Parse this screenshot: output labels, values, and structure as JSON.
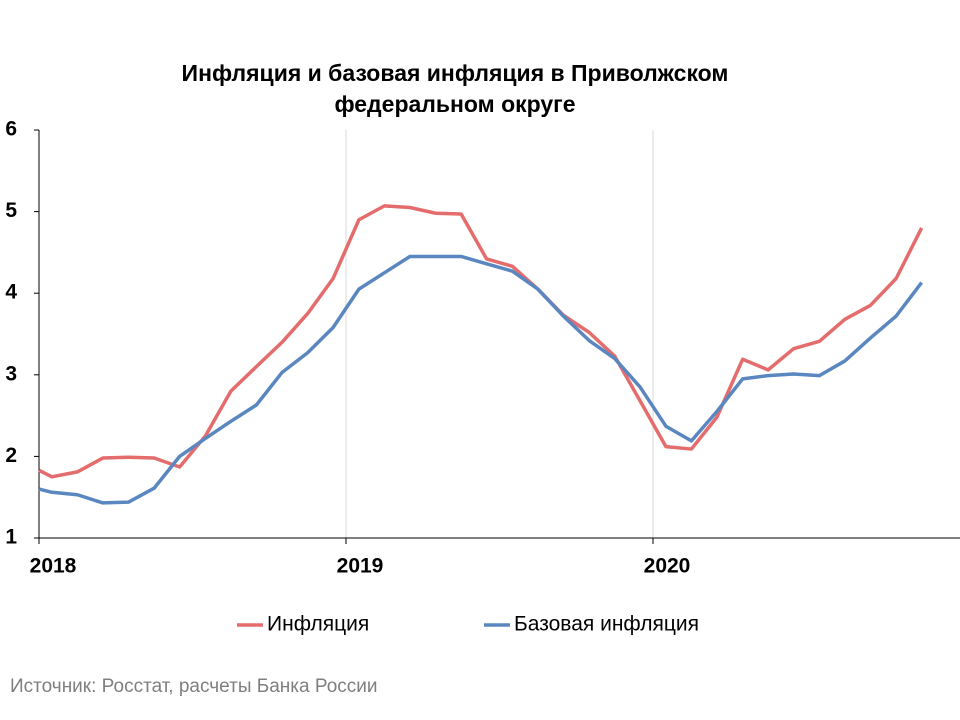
{
  "chart_data": {
    "type": "line",
    "title": "Инфляция и базовая инфляция в Приволжском федеральном округе",
    "source": "Источник: Росстат, расчеты Банка России",
    "x": [
      2018,
      2018.042,
      2018.125,
      2018.208,
      2018.292,
      2018.375,
      2018.458,
      2018.542,
      2018.625,
      2018.708,
      2018.792,
      2018.875,
      2018.958,
      2019.042,
      2019.125,
      2019.208,
      2019.292,
      2019.375,
      2019.458,
      2019.542,
      2019.625,
      2019.708,
      2019.792,
      2019.875,
      2019.958,
      2020.042,
      2020.125,
      2020.208,
      2020.292,
      2020.375,
      2020.458,
      2020.542,
      2020.625,
      2020.708,
      2020.792,
      2020.875
    ],
    "series": [
      {
        "name": "Инфляция",
        "color": "#e46c6c",
        "values": [
          1.83,
          1.75,
          1.81,
          1.98,
          1.99,
          1.98,
          1.87,
          2.25,
          2.8,
          3.1,
          3.4,
          3.75,
          4.18,
          4.9,
          5.07,
          5.05,
          4.98,
          4.97,
          4.42,
          4.33,
          4.05,
          3.73,
          3.52,
          3.23,
          2.68,
          2.12,
          2.09,
          2.48,
          3.19,
          3.06,
          3.32,
          3.41,
          3.68,
          3.85,
          4.18,
          4.8
        ]
      },
      {
        "name": "Базовая инфляция",
        "color": "#5b87c0",
        "values": [
          1.6,
          1.56,
          1.53,
          1.43,
          1.44,
          1.61,
          2.0,
          2.22,
          2.43,
          2.63,
          3.03,
          3.27,
          3.58,
          4.05,
          4.25,
          4.45,
          4.45,
          4.45,
          4.36,
          4.27,
          4.05,
          3.72,
          3.42,
          3.2,
          2.85,
          2.37,
          2.19,
          2.55,
          2.95,
          2.99,
          3.01,
          2.99,
          3.17,
          3.45,
          3.72,
          4.13
        ]
      }
    ],
    "xlim": [
      2018,
      2021
    ],
    "xticks": [
      2018,
      2019,
      2020
    ],
    "ylim": [
      1,
      6
    ],
    "yticks": [
      1,
      2,
      3,
      4,
      5,
      6
    ],
    "grid": "x",
    "legend": "bottom"
  }
}
